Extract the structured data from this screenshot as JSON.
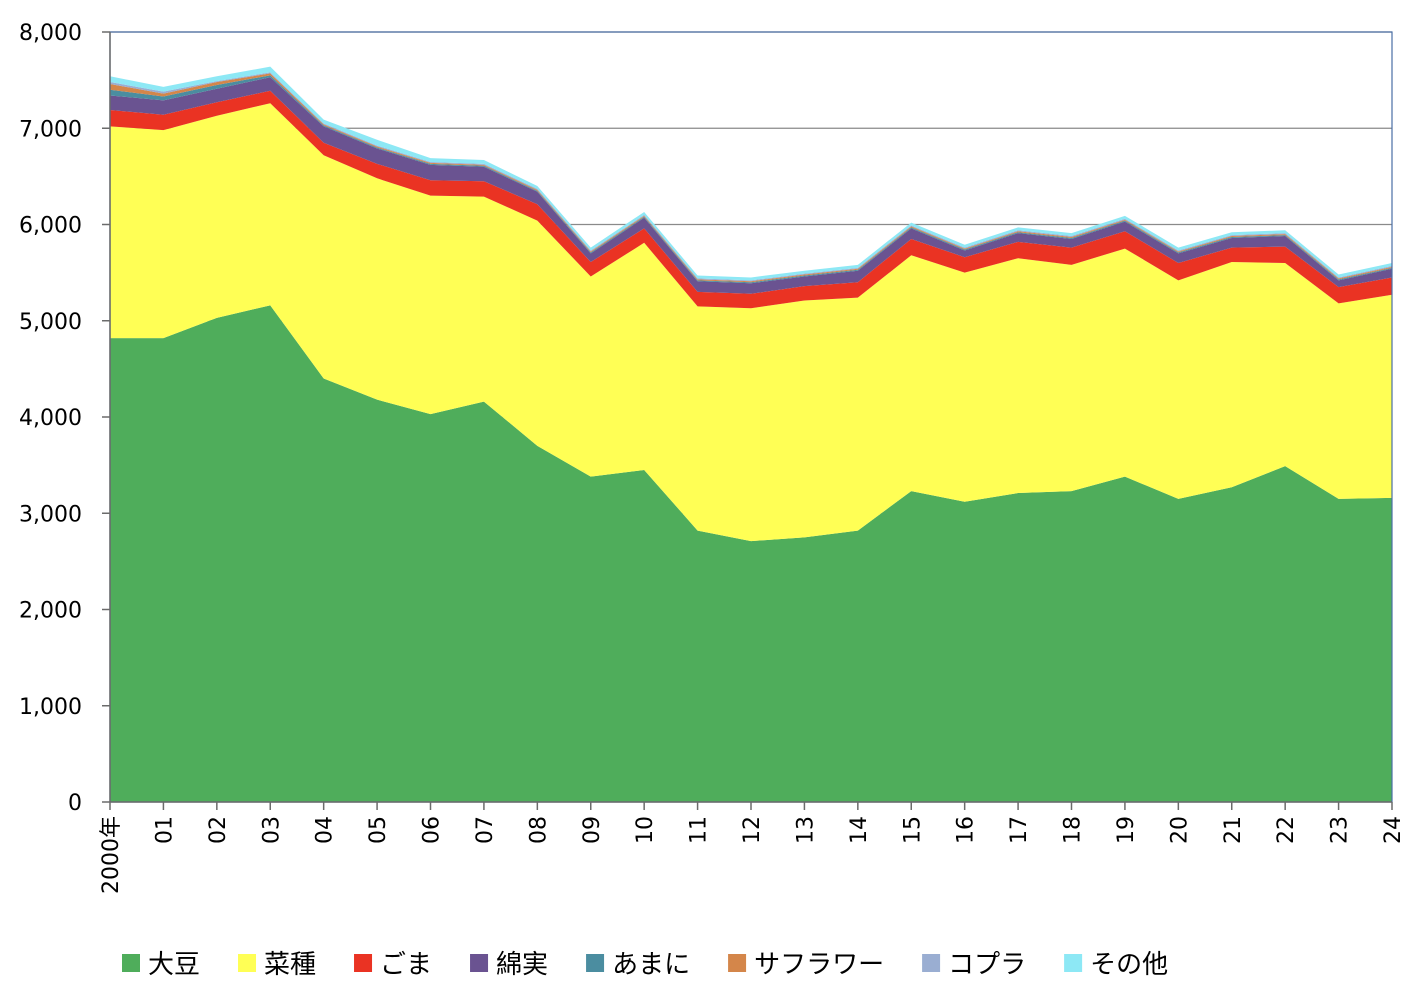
{
  "chart_data": {
    "type": "area",
    "stacked": true,
    "title": "",
    "xlabel": "",
    "ylabel": "",
    "ylim": [
      0,
      8000
    ],
    "yticks": [
      "0",
      "1,000",
      "2,000",
      "3,000",
      "4,000",
      "5,000",
      "6,000",
      "7,000",
      "8,000"
    ],
    "categories": [
      "2000年",
      "01",
      "02",
      "03",
      "04",
      "05",
      "06",
      "07",
      "08",
      "09",
      "10",
      "11",
      "12",
      "13",
      "14",
      "15",
      "16",
      "17",
      "18",
      "19",
      "20",
      "21",
      "22",
      "23",
      "24"
    ],
    "grid": "horizontal",
    "legend_position": "bottom",
    "series": [
      {
        "name": "大豆",
        "color": "#4fad5b",
        "values": [
          4820,
          4820,
          5030,
          5160,
          4400,
          4180,
          4030,
          4160,
          3700,
          3380,
          3450,
          2820,
          2710,
          2750,
          2820,
          3230,
          3120,
          3210,
          3230,
          3380,
          3150,
          3270,
          3490,
          3150,
          3160
        ]
      },
      {
        "name": "菜種",
        "color": "#ffff55",
        "values": [
          2200,
          2160,
          2100,
          2100,
          2320,
          2300,
          2270,
          2130,
          2340,
          2080,
          2360,
          2330,
          2420,
          2460,
          2420,
          2450,
          2380,
          2440,
          2350,
          2370,
          2270,
          2340,
          2110,
          2030,
          2110
        ]
      },
      {
        "name": "ごま",
        "color": "#ea3323",
        "values": [
          170,
          160,
          140,
          130,
          130,
          150,
          160,
          160,
          170,
          150,
          150,
          150,
          150,
          150,
          160,
          170,
          160,
          170,
          180,
          180,
          180,
          150,
          170,
          170,
          180
        ]
      },
      {
        "name": "綿実",
        "color": "#6a5391",
        "values": [
          150,
          150,
          140,
          140,
          170,
          160,
          160,
          150,
          130,
          90,
          110,
          110,
          110,
          100,
          120,
          110,
          70,
          90,
          90,
          100,
          100,
          100,
          110,
          70,
          90
        ]
      },
      {
        "name": "あまに",
        "color": "#4b8da0",
        "values": [
          60,
          40,
          40,
          20,
          10,
          10,
          10,
          10,
          10,
          10,
          10,
          10,
          10,
          10,
          10,
          10,
          10,
          10,
          10,
          10,
          10,
          10,
          10,
          10,
          10
        ]
      },
      {
        "name": "サフラワー",
        "color": "#d4864a",
        "values": [
          60,
          30,
          30,
          20,
          10,
          10,
          10,
          10,
          10,
          10,
          10,
          10,
          10,
          10,
          10,
          10,
          10,
          10,
          10,
          10,
          10,
          10,
          10,
          10,
          10
        ]
      },
      {
        "name": "コプラ",
        "color": "#9aaed2",
        "values": [
          20,
          20,
          10,
          10,
          10,
          10,
          10,
          10,
          10,
          10,
          10,
          10,
          10,
          10,
          10,
          10,
          10,
          10,
          10,
          10,
          10,
          10,
          10,
          10,
          10
        ]
      },
      {
        "name": "その他",
        "color": "#8de8f5",
        "values": [
          60,
          50,
          50,
          60,
          40,
          60,
          40,
          40,
          30,
          30,
          30,
          30,
          30,
          30,
          30,
          30,
          30,
          30,
          30,
          30,
          30,
          30,
          30,
          30,
          30
        ]
      }
    ]
  }
}
